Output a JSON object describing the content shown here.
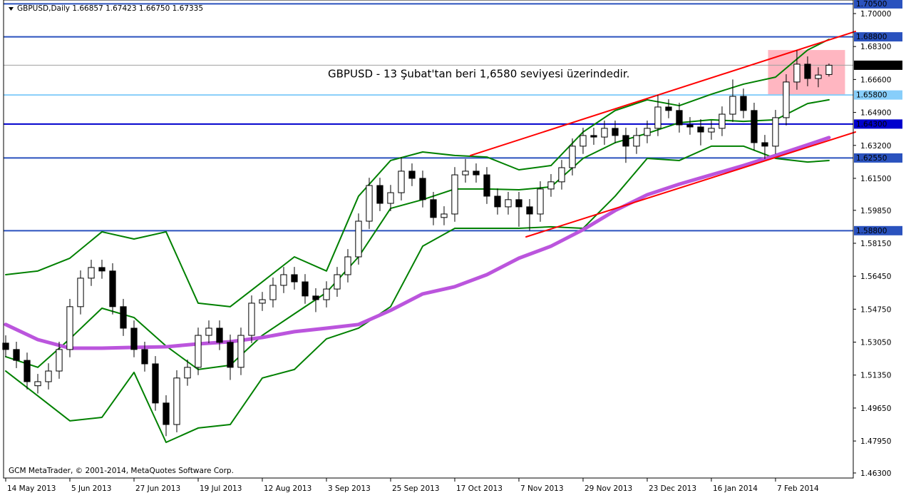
{
  "chart_data": {
    "type": "candlestick",
    "header": "GBPUSD,Daily  1.66857 1.67423 1.66750 1.67335",
    "annotation": "GBPUSD - 13 Şubat'tan beri 1,6580 seviyesi üzerindedir.",
    "footer": "GCM MetaTrader, © 2001-2014, MetaQuotes Software Corp.",
    "xlim": [
      -0.2,
      79.27
    ],
    "ylim": [
      1.4604,
      1.707
    ],
    "xticks": [
      {
        "value": 0,
        "label": "14 May 2013"
      },
      {
        "value": 6,
        "label": "5 Jun 2013"
      },
      {
        "value": 12,
        "label": "27 Jun 2013"
      },
      {
        "value": 18,
        "label": "19 Jul 2013"
      },
      {
        "value": 24,
        "label": "12 Aug 2013"
      },
      {
        "value": 30,
        "label": "3 Sep 2013"
      },
      {
        "value": 36,
        "label": "25 Sep 2013"
      },
      {
        "value": 42,
        "label": "17 Oct 2013"
      },
      {
        "value": 48,
        "label": "7 Nov 2013"
      },
      {
        "value": 54,
        "label": "29 Nov 2013"
      },
      {
        "value": 60,
        "label": "23 Dec 2013"
      },
      {
        "value": 66,
        "label": "16 Jan 2014"
      },
      {
        "value": 72,
        "label": "7 Feb 2014"
      }
    ],
    "yticks": [
      {
        "value": 1.7,
        "label": "1.70000"
      },
      {
        "value": 1.683,
        "label": "1.68300"
      },
      {
        "value": 1.666,
        "label": "1.66600"
      },
      {
        "value": 1.649,
        "label": "1.64900"
      },
      {
        "value": 1.632,
        "label": "1.63200"
      },
      {
        "value": 1.615,
        "label": "1.61500"
      },
      {
        "value": 1.5985,
        "label": "1.59850"
      },
      {
        "value": 1.5815,
        "label": "1.58150"
      },
      {
        "value": 1.5645,
        "label": "1.56450"
      },
      {
        "value": 1.5475,
        "label": "1.54750"
      },
      {
        "value": 1.5305,
        "label": "1.53050"
      },
      {
        "value": 1.5135,
        "label": "1.51350"
      },
      {
        "value": 1.4965,
        "label": "1.49650"
      },
      {
        "value": 1.4795,
        "label": "1.47950"
      },
      {
        "value": 1.463,
        "label": "1.46300"
      }
    ],
    "up_color": "#ffffff",
    "down_color": "#000000",
    "ohlc": [
      [
        1.53,
        1.534,
        1.5227,
        1.5267
      ],
      [
        1.5267,
        1.5307,
        1.5171,
        1.5211
      ],
      [
        1.5211,
        1.5251,
        1.5061,
        1.5101
      ],
      [
        1.508,
        1.5141,
        1.504,
        1.5101
      ],
      [
        1.5101,
        1.5196,
        1.5061,
        1.5156
      ],
      [
        1.5156,
        1.5307,
        1.5116,
        1.5267
      ],
      [
        1.5267,
        1.5528,
        1.5227,
        1.5488
      ],
      [
        1.5488,
        1.5675,
        1.5448,
        1.5635
      ],
      [
        1.5635,
        1.573,
        1.5595,
        1.569
      ],
      [
        1.569,
        1.573,
        1.5632,
        1.5672
      ],
      [
        1.5672,
        1.5712,
        1.5448,
        1.5488
      ],
      [
        1.5488,
        1.5528,
        1.5337,
        1.5377
      ],
      [
        1.5377,
        1.5417,
        1.5227,
        1.5267
      ],
      [
        1.5267,
        1.5307,
        1.5153,
        1.5193
      ],
      [
        1.5193,
        1.5233,
        1.4951,
        1.4991
      ],
      [
        1.4991,
        1.5031,
        1.482,
        1.488
      ],
      [
        1.488,
        1.516,
        1.484,
        1.512
      ],
      [
        1.512,
        1.5215,
        1.508,
        1.5175
      ],
      [
        1.5175,
        1.538,
        1.5135,
        1.534
      ],
      [
        1.534,
        1.5417,
        1.53,
        1.5377
      ],
      [
        1.5377,
        1.5417,
        1.5264,
        1.5304
      ],
      [
        1.5304,
        1.5344,
        1.511,
        1.5175
      ],
      [
        1.5175,
        1.538,
        1.5135,
        1.534
      ],
      [
        1.534,
        1.5546,
        1.53,
        1.5506
      ],
      [
        1.5506,
        1.5564,
        1.5466,
        1.5524
      ],
      [
        1.5524,
        1.5638,
        1.5484,
        1.5598
      ],
      [
        1.5598,
        1.5693,
        1.5558,
        1.5653
      ],
      [
        1.5653,
        1.5693,
        1.5576,
        1.5616
      ],
      [
        1.5616,
        1.5656,
        1.5503,
        1.5543
      ],
      [
        1.5543,
        1.5583,
        1.546,
        1.5524
      ],
      [
        1.5524,
        1.5619,
        1.5484,
        1.5579
      ],
      [
        1.5579,
        1.5693,
        1.5539,
        1.5653
      ],
      [
        1.5653,
        1.5785,
        1.5613,
        1.5745
      ],
      [
        1.5745,
        1.5969,
        1.5705,
        1.5929
      ],
      [
        1.5929,
        1.6153,
        1.5889,
        1.6113
      ],
      [
        1.6113,
        1.6153,
        1.5981,
        1.6021
      ],
      [
        1.6021,
        1.6116,
        1.5981,
        1.6076
      ],
      [
        1.6076,
        1.626,
        1.6036,
        1.6187
      ],
      [
        1.6187,
        1.6227,
        1.611,
        1.615
      ],
      [
        1.615,
        1.619,
        1.6,
        1.604
      ],
      [
        1.604,
        1.608,
        1.5908,
        1.5948
      ],
      [
        1.5948,
        1.6006,
        1.5908,
        1.5966
      ],
      [
        1.5966,
        1.6208,
        1.5926,
        1.6168
      ],
      [
        1.6168,
        1.625,
        1.6128,
        1.6187
      ],
      [
        1.6187,
        1.6227,
        1.6128,
        1.6168
      ],
      [
        1.6168,
        1.6208,
        1.6018,
        1.6058
      ],
      [
        1.6058,
        1.6098,
        1.5963,
        1.6003
      ],
      [
        1.6003,
        1.608,
        1.5963,
        1.604
      ],
      [
        1.604,
        1.608,
        1.59,
        1.6003
      ],
      [
        1.6003,
        1.6043,
        1.588,
        1.5966
      ],
      [
        1.5966,
        1.6135,
        1.5926,
        1.6095
      ],
      [
        1.6095,
        1.6172,
        1.6055,
        1.6132
      ],
      [
        1.6132,
        1.6245,
        1.6092,
        1.6205
      ],
      [
        1.6205,
        1.6356,
        1.6165,
        1.6316
      ],
      [
        1.6316,
        1.6411,
        1.6276,
        1.6371
      ],
      [
        1.6371,
        1.6411,
        1.6323,
        1.6363
      ],
      [
        1.6363,
        1.6448,
        1.6323,
        1.6408
      ],
      [
        1.6408,
        1.6448,
        1.6331,
        1.6371
      ],
      [
        1.6371,
        1.6411,
        1.623,
        1.6316
      ],
      [
        1.6316,
        1.6411,
        1.6276,
        1.6371
      ],
      [
        1.6371,
        1.6448,
        1.6331,
        1.6408
      ],
      [
        1.6408,
        1.658,
        1.6368,
        1.6518
      ],
      [
        1.6518,
        1.6558,
        1.646,
        1.65
      ],
      [
        1.65,
        1.654,
        1.6386,
        1.6426
      ],
      [
        1.6426,
        1.6466,
        1.6375,
        1.6415
      ],
      [
        1.6415,
        1.6455,
        1.632,
        1.6389
      ],
      [
        1.6389,
        1.6448,
        1.6349,
        1.6408
      ],
      [
        1.6408,
        1.6521,
        1.6368,
        1.6481
      ],
      [
        1.6481,
        1.666,
        1.6441,
        1.6573
      ],
      [
        1.6573,
        1.6613,
        1.646,
        1.65
      ],
      [
        1.65,
        1.654,
        1.6294,
        1.6334
      ],
      [
        1.6334,
        1.6374,
        1.625,
        1.6316
      ],
      [
        1.6316,
        1.6503,
        1.6276,
        1.6463
      ],
      [
        1.6463,
        1.6687,
        1.6423,
        1.6647
      ],
      [
        1.6647,
        1.681,
        1.6607,
        1.6739
      ],
      [
        1.6739,
        1.6779,
        1.6625,
        1.6665
      ],
      [
        1.6665,
        1.6723,
        1.662,
        1.6683
      ],
      [
        1.66857,
        1.67423,
        1.6675,
        1.67335
      ]
    ],
    "series": [
      {
        "color": "#008000",
        "x": [
          0,
          3,
          6,
          9,
          12,
          15,
          18,
          21,
          24,
          27,
          30,
          33,
          36,
          39,
          42,
          45,
          48,
          51,
          54,
          57,
          60,
          63,
          66,
          69,
          72,
          75,
          77
        ],
        "values": [
          1.5653,
          1.5672,
          1.5738,
          1.5874,
          1.5837,
          1.5874,
          1.5506,
          1.5488,
          1.5616,
          1.5745,
          1.5672,
          1.6058,
          1.6242,
          1.6286,
          1.6268,
          1.626,
          1.6194,
          1.6216,
          1.6389,
          1.65,
          1.6555,
          1.6525,
          1.6584,
          1.6636,
          1.6672,
          1.6812,
          1.6867
        ]
      },
      {
        "color": "#008000",
        "x": [
          0,
          3,
          6,
          9,
          12,
          15,
          18,
          21,
          24,
          27,
          30,
          33,
          36,
          39,
          42,
          45,
          48,
          51,
          54,
          57,
          60,
          63,
          66,
          69,
          72,
          75,
          77
        ],
        "values": [
          1.523,
          1.5175,
          1.5322,
          1.548,
          1.5432,
          1.5285,
          1.5164,
          1.5186,
          1.534,
          1.5451,
          1.5561,
          1.5745,
          1.5995,
          1.604,
          1.6095,
          1.6095,
          1.6091,
          1.6106,
          1.6253,
          1.6334,
          1.6382,
          1.6437,
          1.6452,
          1.6444,
          1.6452,
          1.6536,
          1.6555
        ]
      },
      {
        "color": "#008000",
        "x": [
          0,
          3,
          6,
          9,
          12,
          15,
          18,
          21,
          24,
          27,
          30,
          33,
          36,
          39,
          42,
          45,
          48,
          51,
          54,
          57,
          60,
          63,
          66,
          69,
          72,
          75,
          77
        ],
        "values": [
          1.5156,
          1.5028,
          1.4899,
          1.4917,
          1.5149,
          1.4788,
          1.4862,
          1.488,
          1.512,
          1.5164,
          1.5322,
          1.5377,
          1.5488,
          1.58,
          1.5892,
          1.5892,
          1.5892,
          1.59,
          1.5892,
          1.6058,
          1.6253,
          1.6242,
          1.6316,
          1.6316,
          1.6253,
          1.6234,
          1.6242
        ]
      },
      {
        "color": "#bb55dd",
        "width": 5,
        "x": [
          0,
          3,
          6,
          9,
          12,
          15,
          18,
          21,
          24,
          27,
          30,
          33,
          36,
          39,
          42,
          45,
          48,
          51,
          54,
          57,
          60,
          63,
          66,
          69,
          72,
          75,
          77
        ],
        "values": [
          1.5396,
          1.5318,
          1.5274,
          1.5274,
          1.5278,
          1.5281,
          1.5296,
          1.5307,
          1.5329,
          1.5359,
          1.5377,
          1.5396,
          1.5469,
          1.5554,
          1.5591,
          1.5653,
          1.5738,
          1.58,
          1.5885,
          1.5984,
          1.6065,
          1.612,
          1.6168,
          1.6216,
          1.6268,
          1.6323,
          1.636
        ]
      },
      {
        "color": "#ff0000",
        "width": 2,
        "x": [
          43.47,
          79.47
        ],
        "values": [
          1.6268,
          1.6908
        ]
      },
      {
        "color": "#ff0000",
        "width": 2,
        "x": [
          48.67,
          79.47
        ],
        "values": [
          1.5848,
          1.6389
        ]
      }
    ],
    "highlight": {
      "color": "#ffb6c1",
      "x": [
        71.3,
        78.5
      ],
      "values": [
        1.6812,
        1.658
      ]
    },
    "levels": [
      {
        "value": 1.705,
        "label": "1.70500",
        "color": "#2a52be"
      },
      {
        "value": 1.688,
        "label": "1.68800",
        "color": "#2a52be"
      },
      {
        "value": 1.67335,
        "label": "1.67335",
        "color": "#000000",
        "line_color": "#a0a0a0"
      },
      {
        "value": 1.658,
        "label": "1.65800",
        "color": "#87cefa"
      },
      {
        "value": 1.643,
        "label": "1.64300",
        "color": "#0000cd"
      },
      {
        "value": 1.6255,
        "label": "1.62550",
        "color": "#2a52be"
      },
      {
        "value": 1.588,
        "label": "1.58800",
        "color": "#2a52be"
      }
    ]
  }
}
